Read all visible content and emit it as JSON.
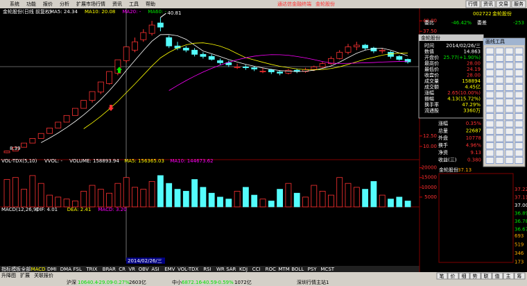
{
  "menu": [
    "系统",
    "功能",
    "报价",
    "分析",
    "扩展市场行情",
    "资讯",
    "工具",
    "帮助"
  ],
  "brand": "通达信金融终端",
  "stock_name": "金轮股份",
  "top_buttons": [
    "行情",
    "资讯",
    "交易",
    "服务"
  ],
  "chart": {
    "header": "金轮股份(日线 前复权)",
    "ma": [
      "MA5: 24.34",
      "MA10: 20.08",
      "MA20: -",
      "MA60: -"
    ],
    "peak_label": "40.81",
    "low_label": "8.39",
    "date_tag": "2014/02/26/三",
    "ylim": [
      7.5,
      42
    ],
    "yticks": [
      {
        "value": 40,
        "label": "40.00"
      },
      {
        "value": 37.5,
        "label": "37.50"
      },
      {
        "value": 12.5,
        "label": "12.50"
      },
      {
        "value": 10,
        "label": "10.00"
      }
    ],
    "candles": [
      [
        8.5,
        8.9,
        9.0,
        8.39
      ],
      [
        8.9,
        9.8,
        9.8,
        8.9
      ],
      [
        9.8,
        10.8,
        10.8,
        9.8
      ],
      [
        10.8,
        11.9,
        11.9,
        10.8
      ],
      [
        11.9,
        13.1,
        13.1,
        11.9
      ],
      [
        13.1,
        14.4,
        14.4,
        13.1
      ],
      [
        14.4,
        15.8,
        15.8,
        14.4
      ],
      [
        15.8,
        17.4,
        17.4,
        15.8
      ],
      [
        17.4,
        19.1,
        19.1,
        17.4
      ],
      [
        19.1,
        21.0,
        21.0,
        19.1
      ],
      [
        21.0,
        23.1,
        23.1,
        20.5
      ],
      [
        23.0,
        25.4,
        25.4,
        22.5
      ],
      [
        25.0,
        27.9,
        27.9,
        24.8
      ],
      [
        27.5,
        30.7,
        30.7,
        27.0
      ],
      [
        30.5,
        33.8,
        33.8,
        30.0
      ],
      [
        33.0,
        35.0,
        36.0,
        32.5
      ],
      [
        35.5,
        37.2,
        38.0,
        35.0
      ],
      [
        37.0,
        39.0,
        40.0,
        36.5
      ],
      [
        39.5,
        38.5,
        40.81,
        37.5
      ],
      [
        36.0,
        34.0,
        36.5,
        33.5
      ],
      [
        34.0,
        33.5,
        35.0,
        33.0
      ],
      [
        33.5,
        33.0,
        34.0,
        32.5
      ],
      [
        33.0,
        32.0,
        33.5,
        31.5
      ],
      [
        32.0,
        31.5,
        32.5,
        31.0
      ],
      [
        31.5,
        30.8,
        32.0,
        30.5
      ],
      [
        30.5,
        30.0,
        31.0,
        29.5
      ],
      [
        30.0,
        29.5,
        30.5,
        29.0
      ],
      [
        29.0,
        29.0,
        29.8,
        28.5
      ],
      [
        29.0,
        28.8,
        29.5,
        28.3
      ],
      [
        28.8,
        28.5,
        29.2,
        28.0
      ],
      [
        28.0,
        28.0,
        28.8,
        27.5
      ],
      [
        28.3,
        27.8,
        28.5,
        27.3
      ],
      [
        27.8,
        27.5,
        28.2,
        27.0
      ],
      [
        27.5,
        28.2,
        28.5,
        27.2
      ],
      [
        28.2,
        27.9,
        28.6,
        27.5
      ],
      [
        27.9,
        28.4,
        28.8,
        27.6
      ],
      [
        28.4,
        29.0,
        29.3,
        28.0
      ],
      [
        29.0,
        29.8,
        30.2,
        28.8
      ],
      [
        29.8,
        31.0,
        31.5,
        29.5
      ],
      [
        31.0,
        32.5,
        33.0,
        30.8
      ],
      [
        32.5,
        33.8,
        34.5,
        32.0
      ],
      [
        33.8,
        34.2,
        35.0,
        33.0
      ],
      [
        34.2,
        33.5,
        34.5,
        33.0
      ],
      [
        33.5,
        32.8,
        33.8,
        32.3
      ],
      [
        32.8,
        33.0,
        33.5,
        32.2
      ],
      [
        32.5,
        31.5,
        32.8,
        31.0
      ],
      [
        31.5,
        30.8,
        31.8,
        30.5
      ],
      [
        30.8,
        30.2,
        31.0,
        29.8
      ]
    ]
  },
  "volume": {
    "header": "VOL-TDX(5,10)",
    "parts": [
      "VVOL: -",
      "VOLUME: 158893.94",
      "MA5: 156365.03",
      "MA10: 144673.62"
    ],
    "ylim": [
      0,
      22000
    ],
    "yticks": [
      20000,
      15000,
      10000,
      5000
    ],
    "values": [
      14000,
      15000,
      9000,
      16000,
      12000,
      6000,
      5000,
      4000,
      3000,
      8000,
      11000,
      9000,
      7000,
      12000,
      15000,
      10000,
      9000,
      13000,
      16000,
      12000,
      9000,
      8000,
      14000,
      10000,
      7000,
      5000,
      4000,
      8000,
      10000,
      6000,
      4000,
      3000,
      9000,
      12000,
      7000,
      5000,
      11000,
      8000,
      6000,
      15000,
      12000,
      10000,
      9000,
      13000,
      6000,
      4000,
      5000,
      3000
    ]
  },
  "macd": {
    "header": "MACD(12,26,9)",
    "parts": [
      "DIF: 4.01",
      "DEA: 2.41",
      "MACD: 3.20"
    ]
  },
  "tabs": [
    "指标",
    "模板",
    "全部",
    "MACD",
    "DMI",
    "DMA",
    "FSL",
    "TRIX",
    "BRAR",
    "CR",
    "VR",
    "OBV",
    "ASI",
    "EMV",
    "VOL-TDX",
    "RSI",
    "WR",
    "SAR",
    "KDJ",
    "CCI",
    "ROC",
    "MTM",
    "BOLL",
    "PSY",
    "MCST"
  ],
  "bottom_left": [
    "升降图",
    "扩展",
    "关联报价"
  ],
  "status": [
    "沪深",
    "10640.4",
    "-29.09",
    "-0.27%",
    "2603亿",
    "中小",
    "6872.16",
    "-40.59",
    "-0.59%",
    "1072亿",
    "深圳行情主站1"
  ],
  "panel": {
    "code": "002722",
    "name": "金轮股份",
    "top": [
      [
        "委比",
        "-46.42%"
      ],
      [
        "委差",
        "-253"
      ]
    ],
    "rows": [
      [
        "涨幅",
        "0.35%"
      ],
      [
        "总量",
        "22687"
      ],
      [
        "外盘",
        "10778"
      ],
      [
        "换手",
        "4.96%"
      ],
      [
        "净资",
        "9.13"
      ],
      [
        "收益(三)",
        "0.380"
      ]
    ],
    "mini_title": "金轮股份",
    "mini_price": "37.13",
    "mini_ticks": [
      "37.22",
      "37.11",
      "37.00",
      "36.89",
      "36.78",
      "36.67"
    ],
    "mini_vol": [
      "693",
      "519",
      "346",
      "173"
    ],
    "tabs": [
      "笔",
      "价",
      "细",
      "势",
      "联",
      "值",
      "主",
      "筹"
    ]
  },
  "popup": {
    "title": "金轮股份",
    "rows": [
      [
        "时间",
        "2014/02/26/三"
      ],
      [
        "数值",
        "14.863"
      ],
      [
        "开盘价",
        "25.77(+1.90%)"
      ],
      [
        "最高价",
        "28.00"
      ],
      [
        "最低价",
        "24.19"
      ],
      [
        "收盘价",
        "28.00"
      ],
      [
        "成交量",
        "158894"
      ],
      [
        "成交额",
        "4.45亿"
      ],
      [
        "涨幅",
        "2.65(10.00%)"
      ],
      [
        "振幅",
        "4.13(15.72%)"
      ],
      [
        "换手率",
        "47.29%"
      ],
      [
        "流通股",
        "3360万"
      ]
    ]
  },
  "tools_title": "画线工具"
}
